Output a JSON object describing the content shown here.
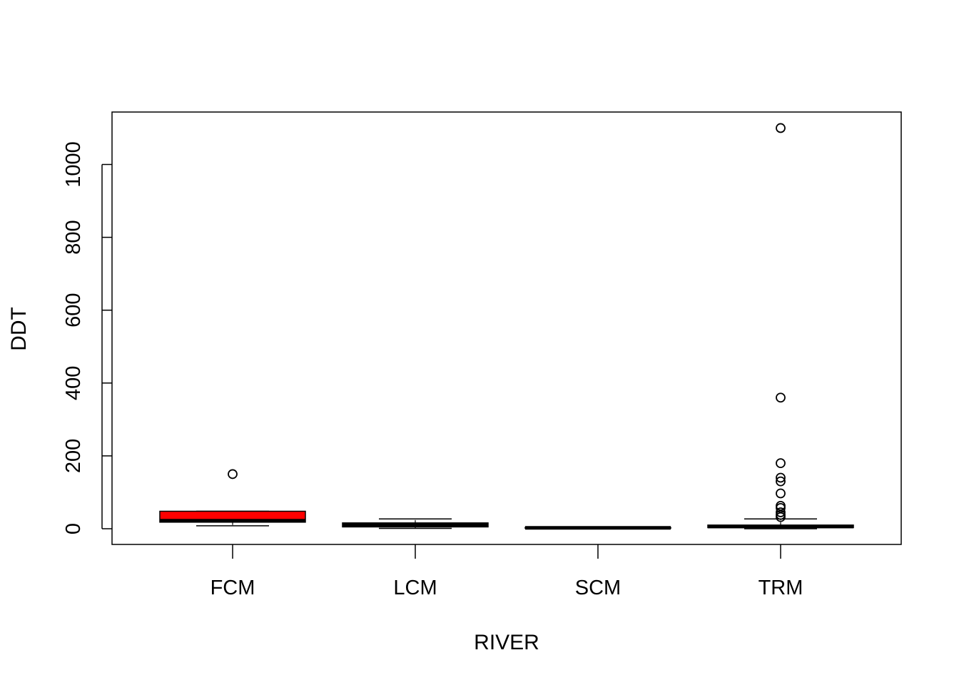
{
  "chart_data": {
    "type": "boxplot",
    "xlabel": "RIVER",
    "ylabel": "DDT",
    "categories": [
      "FCM",
      "LCM",
      "SCM",
      "TRM"
    ],
    "y_ticks": [
      "0",
      "200",
      "400",
      "600",
      "800",
      "1000"
    ],
    "ylim": [
      -45,
      1145
    ],
    "grid": false,
    "legend": "none",
    "boxes": [
      {
        "category": "FCM",
        "whisker_low": 8,
        "q1": 18,
        "median": 22,
        "q3": 48,
        "whisker_high": 48,
        "outliers": [
          150
        ],
        "fill": "#ff0000"
      },
      {
        "category": "LCM",
        "whisker_low": 1,
        "q1": 5,
        "median": 10,
        "q3": 16,
        "whisker_high": 27,
        "outliers": [],
        "fill": "#ff0000"
      },
      {
        "category": "SCM",
        "whisker_low": 0.5,
        "q1": 1.5,
        "median": 2.5,
        "q3": 3.5,
        "whisker_high": 4.5,
        "outliers": [],
        "fill": "#ff0000"
      },
      {
        "category": "TRM",
        "whisker_low": 0,
        "q1": 3,
        "median": 6,
        "q3": 10,
        "whisker_high": 27,
        "outliers": [
          1100,
          360,
          180,
          140,
          130,
          97,
          63,
          57,
          45,
          38,
          32
        ],
        "fill": "#ff0000"
      }
    ]
  }
}
